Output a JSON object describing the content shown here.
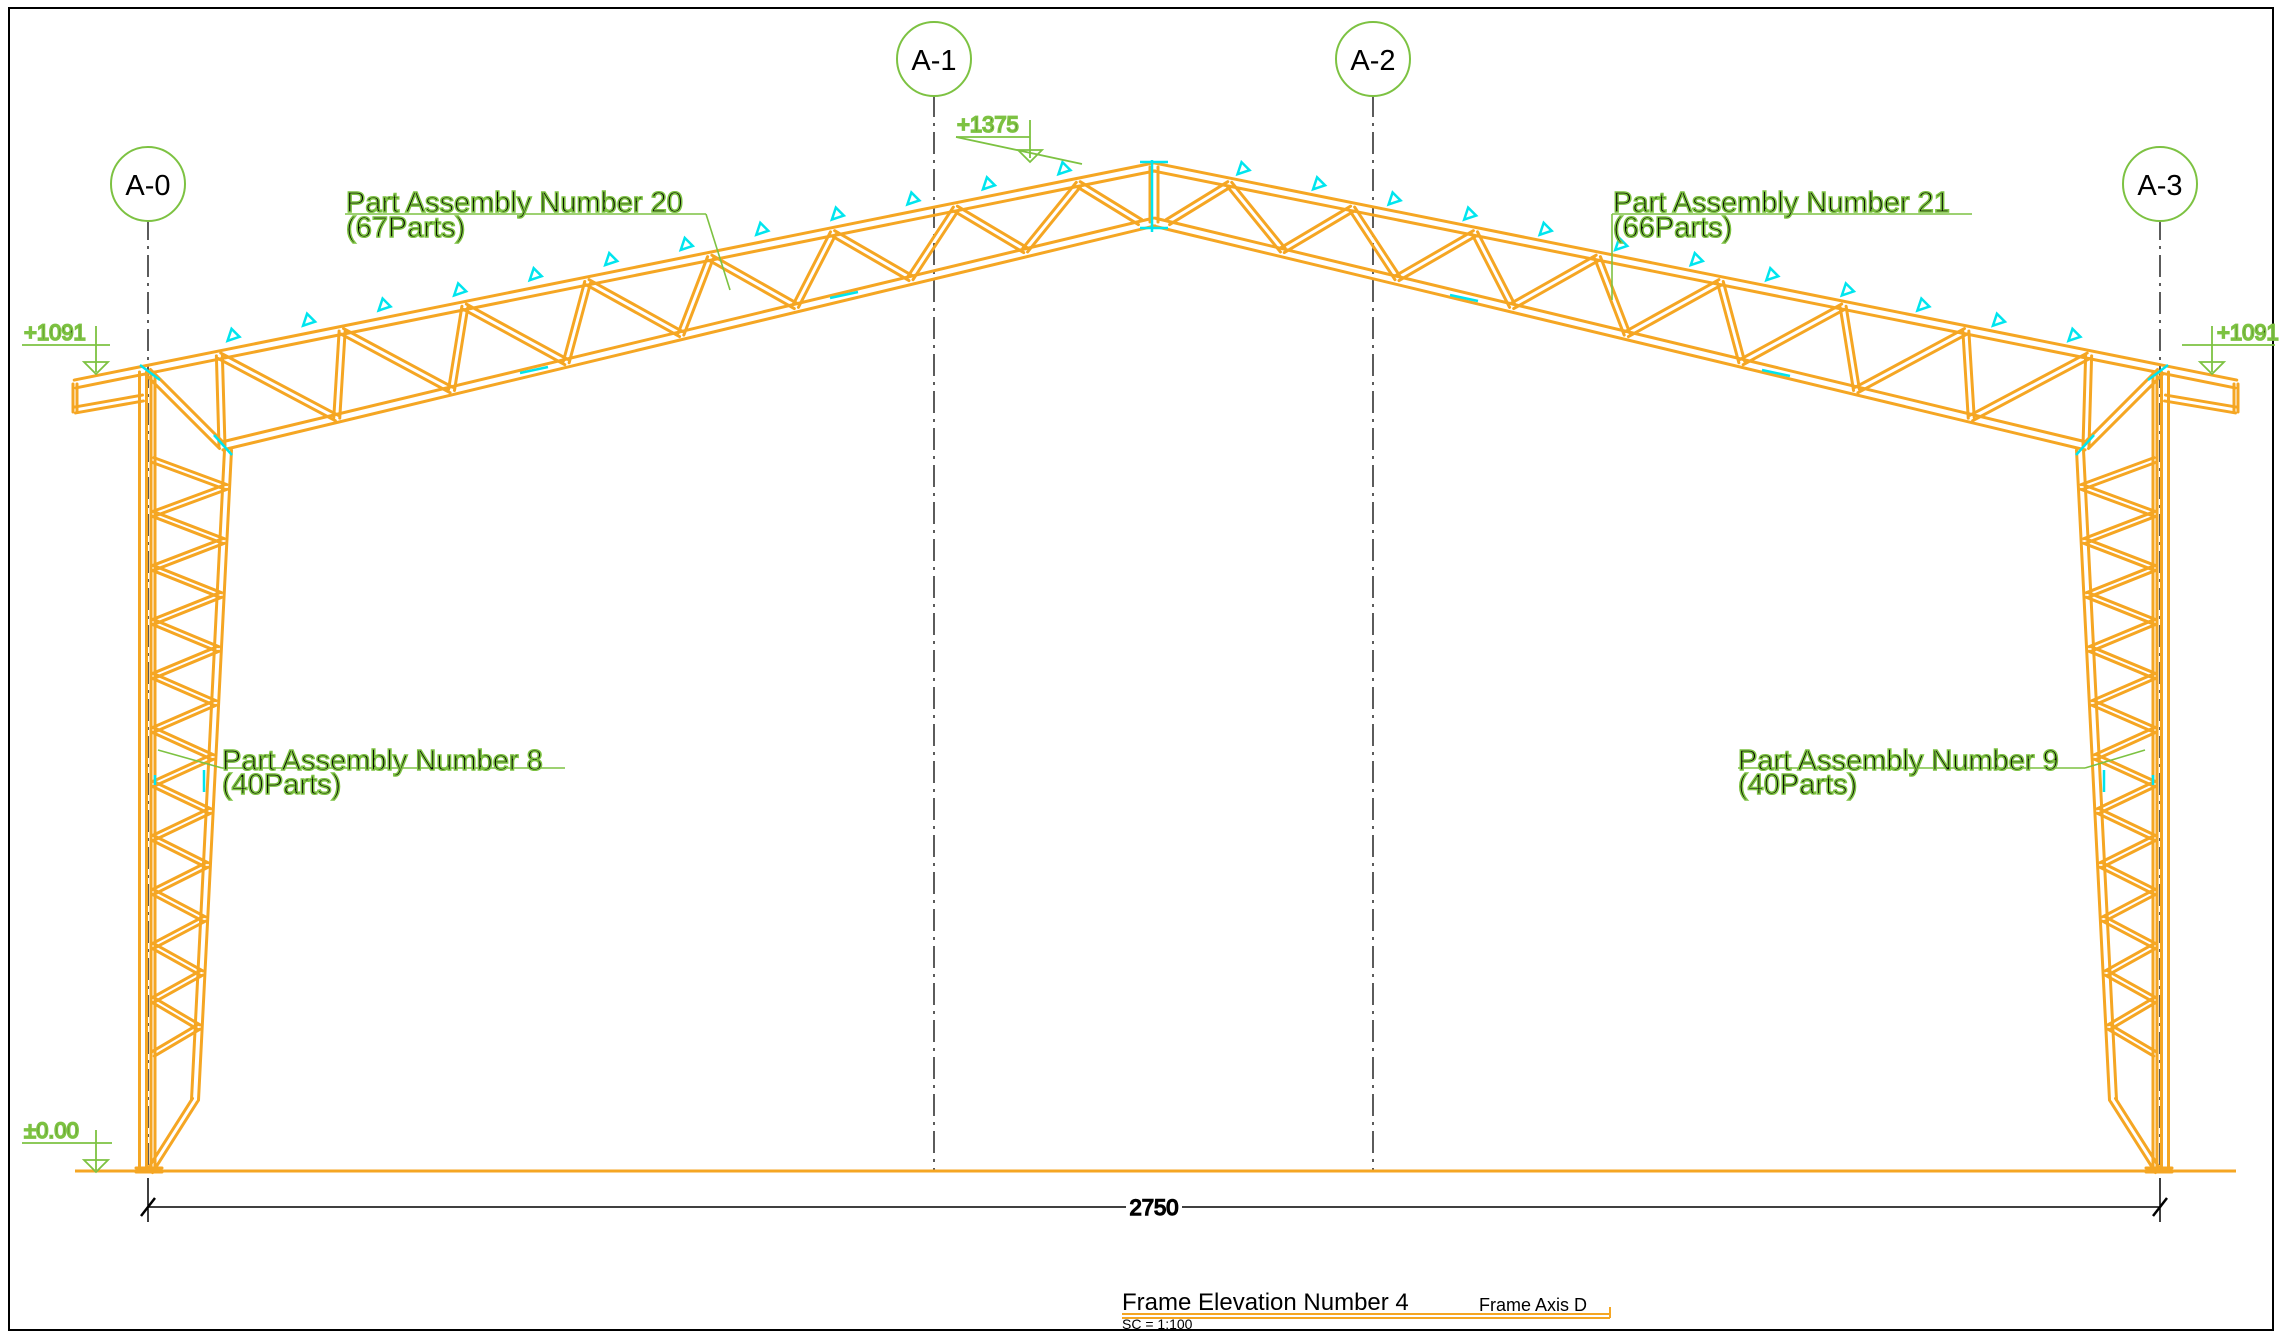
{
  "grid_axes": [
    {
      "label": "A-0"
    },
    {
      "label": "A-1"
    },
    {
      "label": "A-2"
    },
    {
      "label": "A-3"
    }
  ],
  "levels": {
    "ridge": "+1375",
    "eave_left": "+1091",
    "eave_right": "+1091",
    "ground": "±0.00"
  },
  "assemblies": {
    "rafter_left": {
      "title": "Part Assembly Number 20",
      "parts": "(67Parts)"
    },
    "rafter_right": {
      "title": "Part Assembly Number 21",
      "parts": "(66Parts)"
    },
    "column_left": {
      "title": "Part Assembly Number 8",
      "parts": "(40Parts)"
    },
    "column_right": {
      "title": "Part Assembly Number 9",
      "parts": "(40Parts)"
    }
  },
  "dimension": {
    "span": "2750"
  },
  "title_block": {
    "title": "Frame Elevation Number 4",
    "axis": "Frame Axis D",
    "scale": "SC = 1:100"
  },
  "colors": {
    "steel": "#f5a623",
    "bolts": "#00e5ee",
    "annotation": "#7dc242",
    "grid_line": "#333333",
    "border": "#000000"
  }
}
